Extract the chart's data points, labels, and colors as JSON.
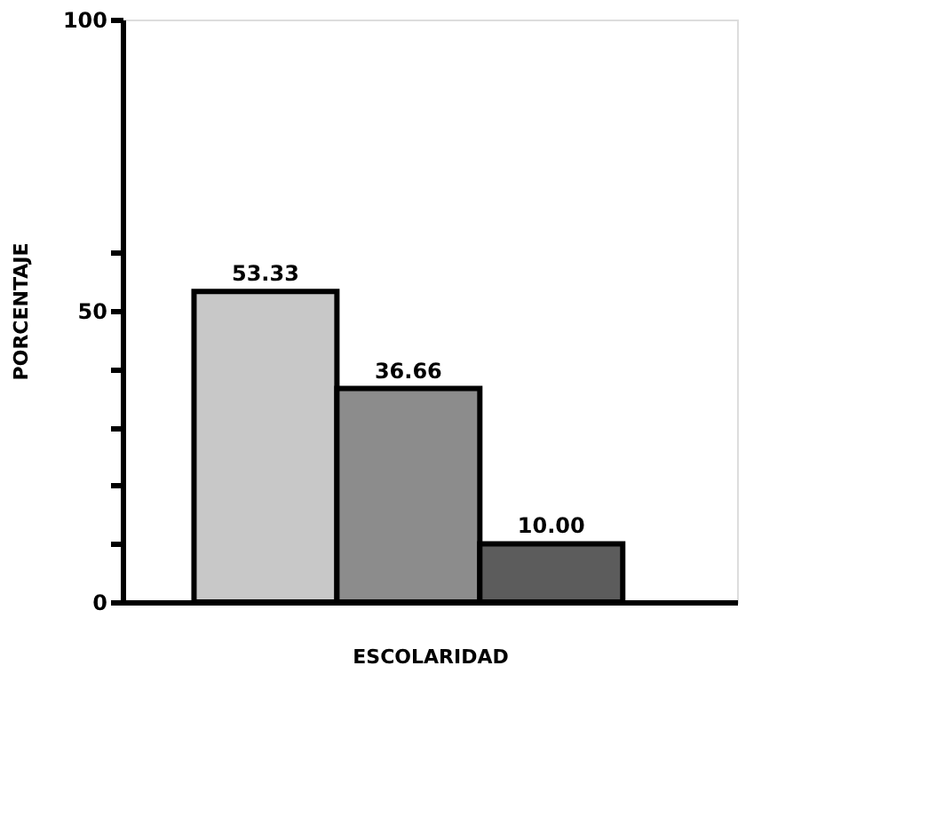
{
  "chart_data": {
    "type": "bar",
    "xlabel": "ESCOLARIDAD",
    "ylabel": "PORCENTAJE",
    "categories": [
      null,
      null,
      null
    ],
    "values": [
      53.33,
      36.66,
      10.0
    ],
    "value_labels": [
      "53.33",
      "36.66",
      "10.00"
    ],
    "colors": [
      "#c8c8c8",
      "#8c8c8c",
      "#5c5c5c"
    ],
    "ylim": [
      0,
      100
    ],
    "yticks": [
      0,
      {
        "value": 10,
        "label": null
      },
      {
        "value": 20,
        "label": null
      },
      {
        "value": 30,
        "label": null
      },
      {
        "value": 40,
        "label": null
      },
      50,
      {
        "value": 60,
        "label": null
      },
      100
    ],
    "grid": false
  }
}
